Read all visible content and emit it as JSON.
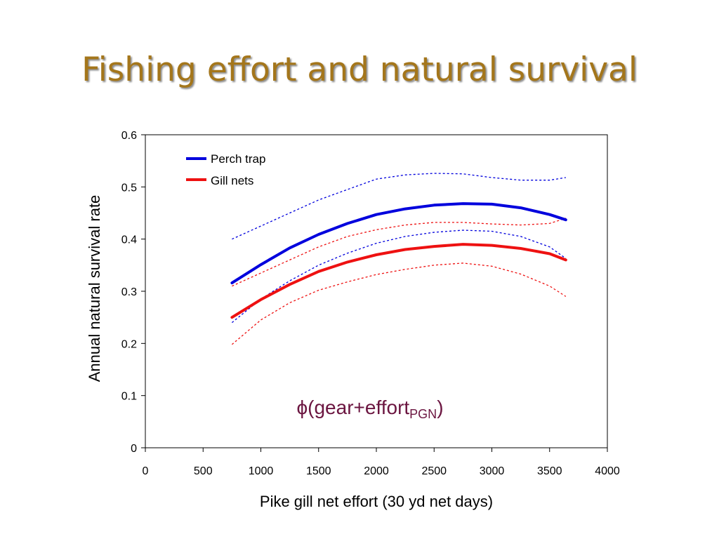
{
  "slide": {
    "title": "Fishing effort and natural survival",
    "annotation": {
      "prefix": "ϕ(gear+effort",
      "subscript": "PGN",
      "suffix": ")"
    }
  },
  "colors": {
    "title": "#a4761b",
    "perch_trap": "#0000dd",
    "gill_nets": "#ee1111",
    "annotation": "#6b1540"
  },
  "chart_data": {
    "type": "line",
    "xlabel": "Pike gill net effort (30 yd net days)",
    "ylabel": "Annual natural survival rate",
    "xlim": [
      0,
      4000
    ],
    "ylim": [
      0,
      0.6
    ],
    "xticks": [
      0,
      500,
      1000,
      1500,
      2000,
      2500,
      3000,
      3500,
      4000
    ],
    "yticks": [
      0,
      0.1,
      0.2,
      0.3,
      0.4,
      0.5,
      0.6
    ],
    "xtick_labels": [
      "0",
      "500",
      "1000",
      "1500",
      "2000",
      "2500",
      "3000",
      "3500",
      "4000"
    ],
    "ytick_labels": [
      "0",
      "0.1",
      "0.2",
      "0.3",
      "0.4",
      "0.5",
      "0.6"
    ],
    "grid": false,
    "legend_position": "top-left",
    "legend": [
      "Perch trap",
      "Gill nets"
    ],
    "x": [
      750,
      1000,
      1250,
      1500,
      1750,
      2000,
      2250,
      2500,
      2750,
      3000,
      3250,
      3500,
      3640
    ],
    "series": [
      {
        "name": "Perch trap",
        "values": [
          0.316,
          0.351,
          0.383,
          0.409,
          0.43,
          0.447,
          0.458,
          0.465,
          0.468,
          0.467,
          0.46,
          0.447,
          0.437
        ],
        "lower": [
          0.24,
          0.285,
          0.32,
          0.35,
          0.373,
          0.392,
          0.405,
          0.413,
          0.417,
          0.415,
          0.405,
          0.385,
          0.363
        ],
        "upper": [
          0.4,
          0.425,
          0.45,
          0.475,
          0.495,
          0.515,
          0.523,
          0.526,
          0.525,
          0.518,
          0.513,
          0.513,
          0.518
        ]
      },
      {
        "name": "Gill nets",
        "values": [
          0.25,
          0.284,
          0.313,
          0.338,
          0.356,
          0.37,
          0.38,
          0.386,
          0.39,
          0.388,
          0.382,
          0.372,
          0.36
        ],
        "lower": [
          0.198,
          0.245,
          0.278,
          0.302,
          0.318,
          0.332,
          0.342,
          0.35,
          0.354,
          0.348,
          0.333,
          0.31,
          0.29
        ],
        "upper": [
          0.31,
          0.335,
          0.36,
          0.385,
          0.405,
          0.418,
          0.427,
          0.432,
          0.432,
          0.429,
          0.427,
          0.43,
          0.44
        ]
      }
    ]
  }
}
